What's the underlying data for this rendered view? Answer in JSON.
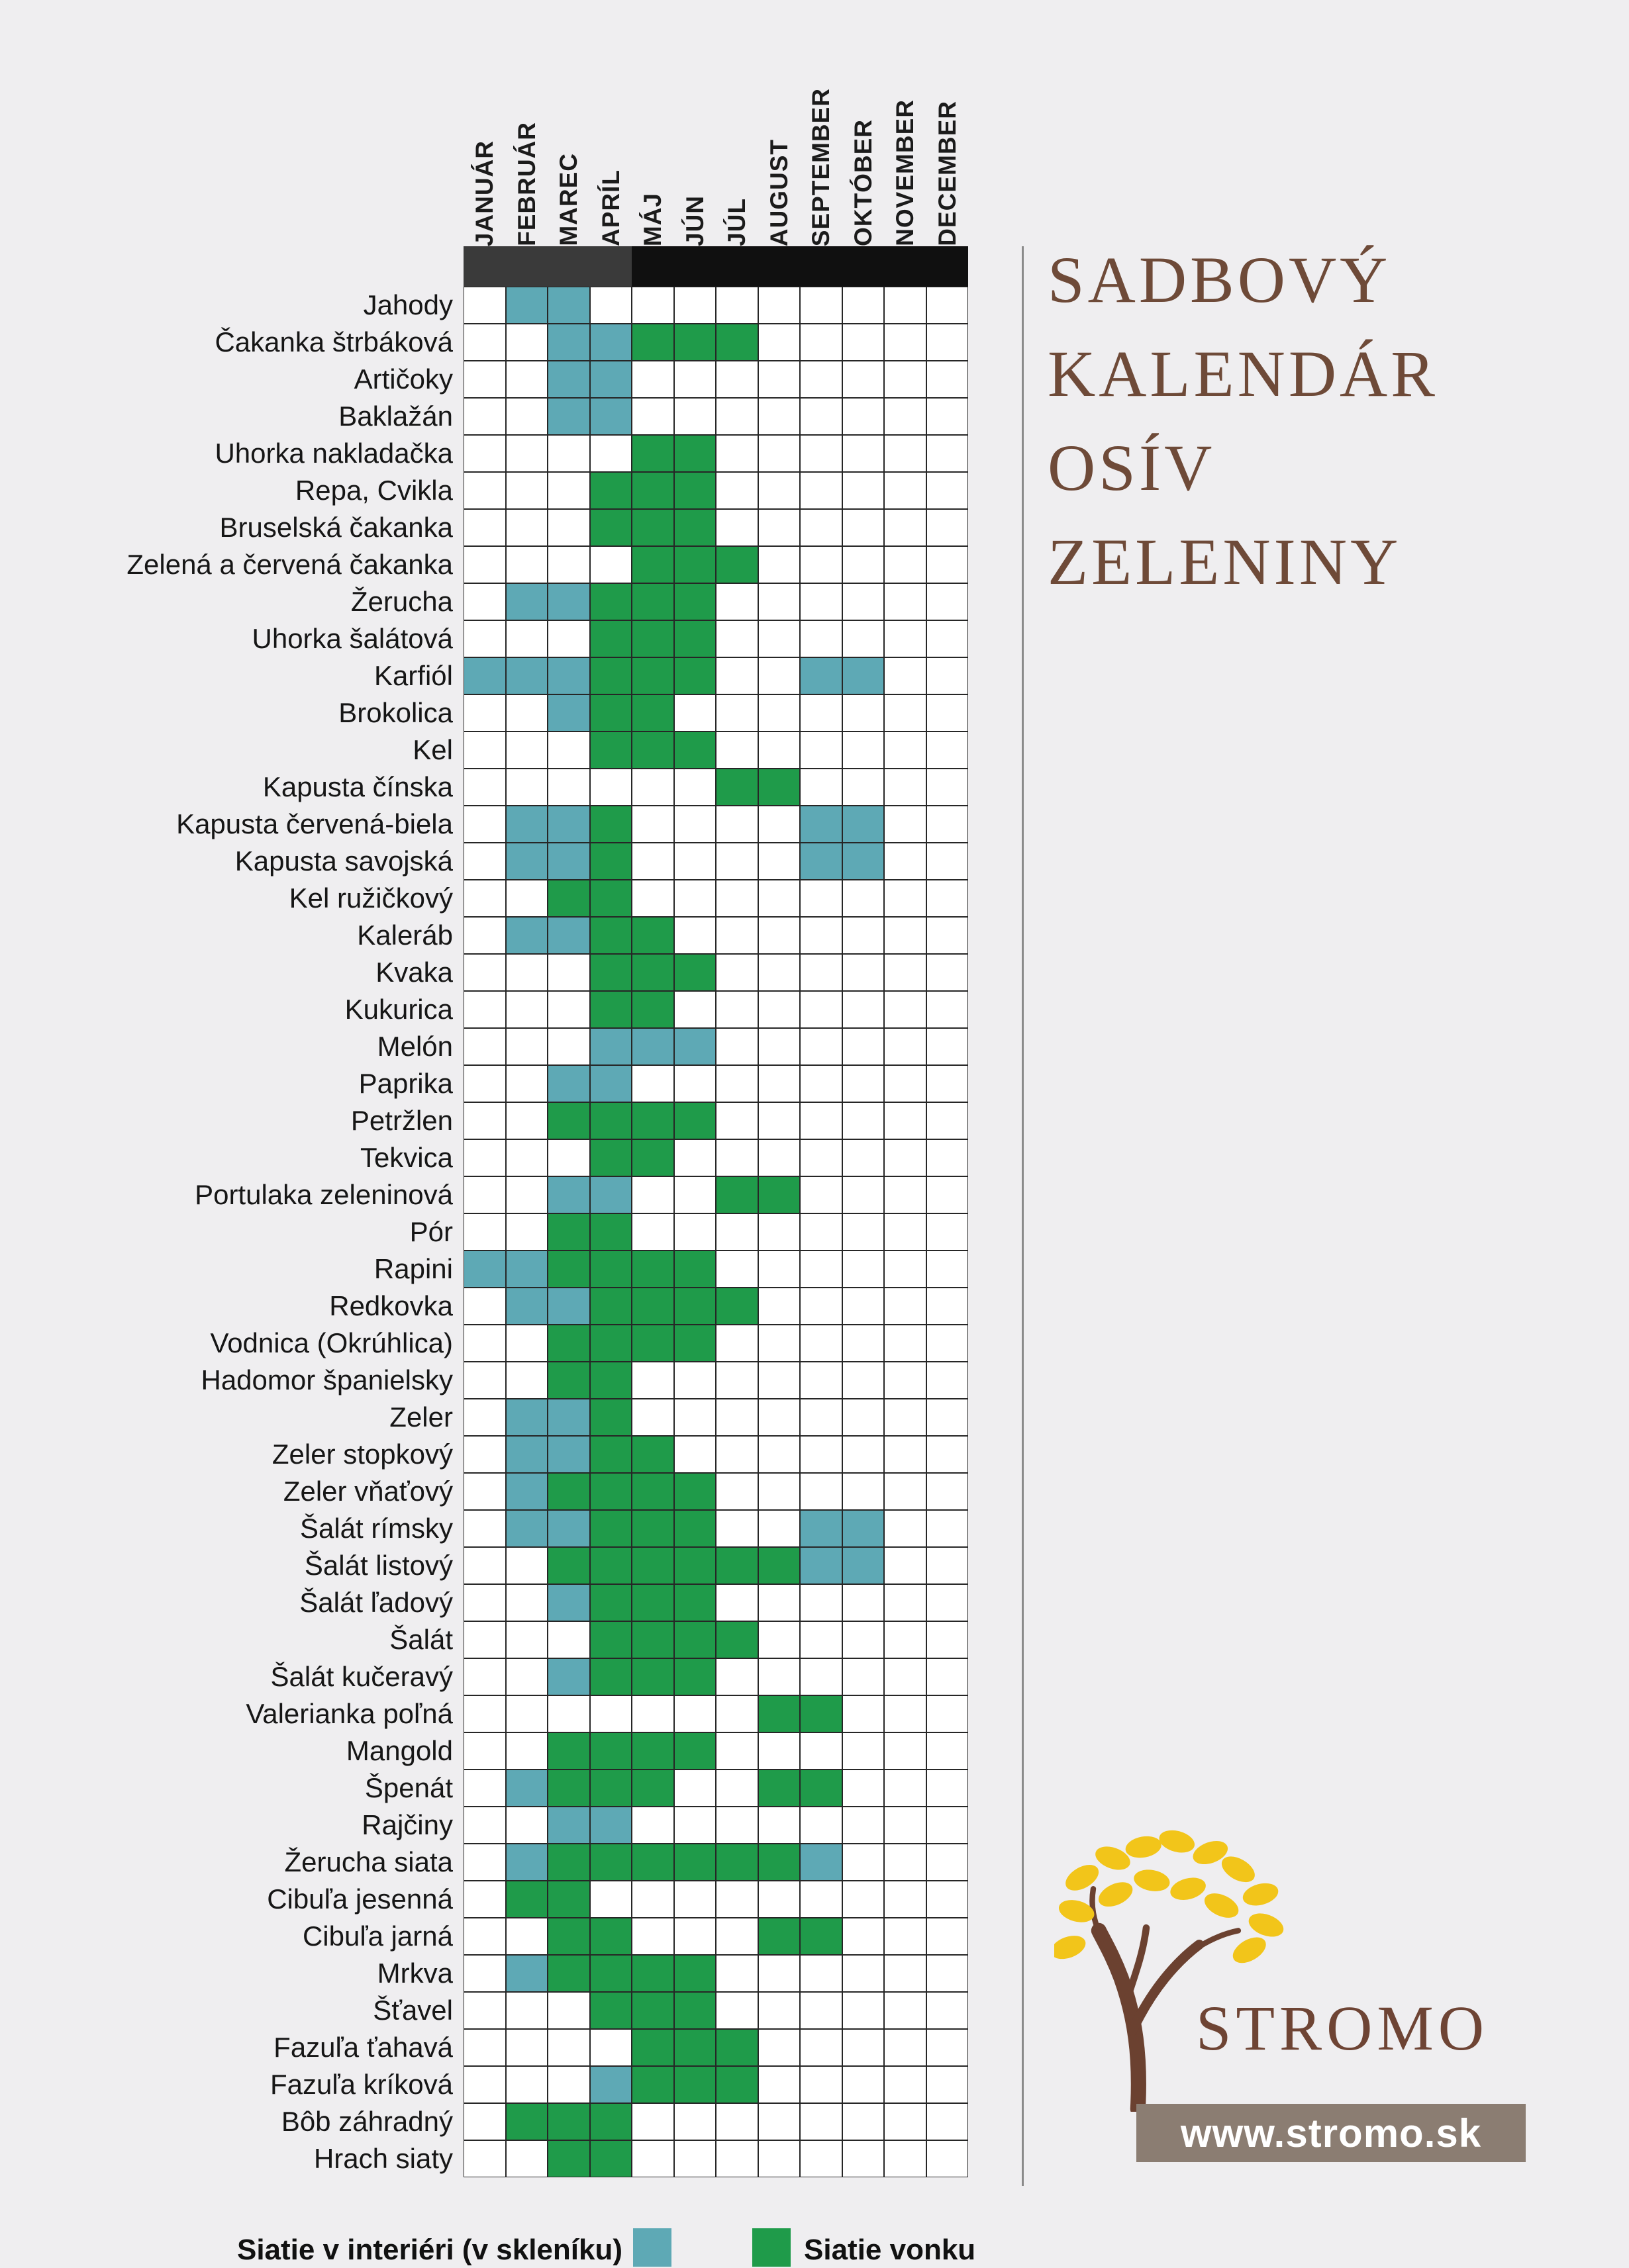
{
  "title_lines": [
    "SADBOVÝ",
    "KALENDÁR",
    "OSÍV",
    "ZELENINY"
  ],
  "logo": {
    "brand": "STROMO",
    "website": "www.stromo.sk"
  },
  "chart_data": {
    "type": "heatmap",
    "title": "SADBOVÝ KALENDÁR OSÍV ZELENINY",
    "x_categories": [
      "JANUÁR",
      "FEBRUÁR",
      "MAREC",
      "APRÍL",
      "MÁJ",
      "JÚN",
      "JÚL",
      "AUGUST",
      "SEPTEMBER",
      "OKTÓBER",
      "NOVEMBER",
      "DECEMBER"
    ],
    "legend": [
      {
        "key": "indoor",
        "label": "Siatie v interiéri (v skleníku)",
        "color": "#5ea9b5"
      },
      {
        "key": "outdoor",
        "label": "Siatie vonku",
        "color": "#1f9b4a"
      }
    ],
    "rows": [
      {
        "label": "Jahody",
        "indoor": [
          2,
          3
        ],
        "outdoor": []
      },
      {
        "label": "Čakanka štrbáková",
        "indoor": [
          3,
          4
        ],
        "outdoor": [
          5,
          6,
          7
        ]
      },
      {
        "label": "Artičoky",
        "indoor": [
          3,
          4
        ],
        "outdoor": []
      },
      {
        "label": "Baklažán",
        "indoor": [
          3,
          4
        ],
        "outdoor": []
      },
      {
        "label": "Uhorka nakladačka",
        "indoor": [],
        "outdoor": [
          5,
          6
        ]
      },
      {
        "label": "Repa, Cvikla",
        "indoor": [],
        "outdoor": [
          4,
          5,
          6
        ]
      },
      {
        "label": "Bruselská čakanka",
        "indoor": [],
        "outdoor": [
          4,
          5,
          6
        ]
      },
      {
        "label": "Zelená a červená čakanka",
        "indoor": [],
        "outdoor": [
          5,
          6,
          7
        ]
      },
      {
        "label": "Žerucha",
        "indoor": [
          2,
          3
        ],
        "outdoor": [
          4,
          5,
          6
        ]
      },
      {
        "label": "Uhorka šalátová",
        "indoor": [],
        "outdoor": [
          4,
          5,
          6
        ]
      },
      {
        "label": "Karfiól",
        "indoor": [
          1,
          2,
          3,
          9,
          10
        ],
        "outdoor": [
          4,
          5,
          6
        ]
      },
      {
        "label": "Brokolica",
        "indoor": [
          3
        ],
        "outdoor": [
          4,
          5
        ]
      },
      {
        "label": "Kel",
        "indoor": [],
        "outdoor": [
          4,
          5,
          6
        ]
      },
      {
        "label": "Kapusta čínska",
        "indoor": [],
        "outdoor": [
          7,
          8
        ]
      },
      {
        "label": "Kapusta červená-biela",
        "indoor": [
          2,
          3,
          9,
          10
        ],
        "outdoor": [
          4
        ]
      },
      {
        "label": "Kapusta savojská",
        "indoor": [
          2,
          3,
          9,
          10
        ],
        "outdoor": [
          4
        ]
      },
      {
        "label": "Kel ružičkový",
        "indoor": [],
        "outdoor": [
          3,
          4
        ]
      },
      {
        "label": "Kaleráb",
        "indoor": [
          2,
          3
        ],
        "outdoor": [
          4,
          5
        ]
      },
      {
        "label": "Kvaka",
        "indoor": [],
        "outdoor": [
          4,
          5,
          6
        ]
      },
      {
        "label": "Kukurica",
        "indoor": [],
        "outdoor": [
          4,
          5
        ]
      },
      {
        "label": "Melón",
        "indoor": [
          4,
          5,
          6
        ],
        "outdoor": []
      },
      {
        "label": "Paprika",
        "indoor": [
          3,
          4
        ],
        "outdoor": []
      },
      {
        "label": "Petržlen",
        "indoor": [],
        "outdoor": [
          3,
          4,
          5,
          6
        ]
      },
      {
        "label": "Tekvica",
        "indoor": [],
        "outdoor": [
          4,
          5
        ]
      },
      {
        "label": "Portulaka zeleninová",
        "indoor": [
          3,
          4
        ],
        "outdoor": [
          7,
          8
        ]
      },
      {
        "label": "Pór",
        "indoor": [],
        "outdoor": [
          3,
          4
        ]
      },
      {
        "label": "Rapini",
        "indoor": [
          1,
          2
        ],
        "outdoor": [
          3,
          4,
          5,
          6
        ]
      },
      {
        "label": "Redkovka",
        "indoor": [
          2,
          3
        ],
        "outdoor": [
          4,
          5,
          6,
          7
        ]
      },
      {
        "label": "Vodnica (Okrúhlica)",
        "indoor": [],
        "outdoor": [
          3,
          4,
          5,
          6
        ]
      },
      {
        "label": "Hadomor španielsky",
        "indoor": [],
        "outdoor": [
          3,
          4
        ]
      },
      {
        "label": "Zeler",
        "indoor": [
          2,
          3
        ],
        "outdoor": [
          4
        ]
      },
      {
        "label": "Zeler stopkový",
        "indoor": [
          2,
          3
        ],
        "outdoor": [
          4,
          5
        ]
      },
      {
        "label": "Zeler vňaťový",
        "indoor": [
          2
        ],
        "outdoor": [
          3,
          4,
          5,
          6
        ]
      },
      {
        "label": "Šalát rímsky",
        "indoor": [
          2,
          3,
          9,
          10
        ],
        "outdoor": [
          4,
          5,
          6
        ]
      },
      {
        "label": "Šalát listový",
        "indoor": [
          9,
          10
        ],
        "outdoor": [
          3,
          4,
          5,
          6,
          7,
          8
        ]
      },
      {
        "label": "Šalát ľadový",
        "indoor": [
          3
        ],
        "outdoor": [
          4,
          5,
          6
        ]
      },
      {
        "label": "Šalát",
        "indoor": [],
        "outdoor": [
          4,
          5,
          6,
          7
        ]
      },
      {
        "label": "Šalát kučeravý",
        "indoor": [
          3
        ],
        "outdoor": [
          4,
          5,
          6
        ]
      },
      {
        "label": "Valerianka poľná",
        "indoor": [],
        "outdoor": [
          8,
          9
        ]
      },
      {
        "label": "Mangold",
        "indoor": [],
        "outdoor": [
          3,
          4,
          5,
          6
        ]
      },
      {
        "label": "Špenát",
        "indoor": [
          2
        ],
        "outdoor": [
          3,
          4,
          5,
          8,
          9
        ]
      },
      {
        "label": "Rajčiny",
        "indoor": [
          3,
          4
        ],
        "outdoor": []
      },
      {
        "label": "Žerucha siata",
        "indoor": [
          2,
          9
        ],
        "outdoor": [
          3,
          4,
          5,
          6,
          7,
          8
        ]
      },
      {
        "label": "Cibuľa jesenná",
        "indoor": [],
        "outdoor": [
          2,
          3
        ]
      },
      {
        "label": "Cibuľa jarná",
        "indoor": [],
        "outdoor": [
          3,
          4,
          8,
          9
        ]
      },
      {
        "label": "Mrkva",
        "indoor": [
          2
        ],
        "outdoor": [
          3,
          4,
          5,
          6
        ]
      },
      {
        "label": "Šťavel",
        "indoor": [],
        "outdoor": [
          4,
          5,
          6
        ]
      },
      {
        "label": "Fazuľa ťahavá",
        "indoor": [],
        "outdoor": [
          5,
          6,
          7
        ]
      },
      {
        "label": "Fazuľa kríková",
        "indoor": [
          4
        ],
        "outdoor": [
          5,
          6,
          7
        ]
      },
      {
        "label": "Bôb záhradný",
        "indoor": [],
        "outdoor": [
          2,
          3,
          4
        ]
      },
      {
        "label": "Hrach siaty",
        "indoor": [],
        "outdoor": [
          3,
          4
        ]
      }
    ],
    "header_bar_colors": {
      "left": "#3a3a3a",
      "right": "#101010"
    },
    "layout": {
      "grid": "on",
      "legend_position": "bottom",
      "month_labels": "rotated-vertical"
    }
  }
}
